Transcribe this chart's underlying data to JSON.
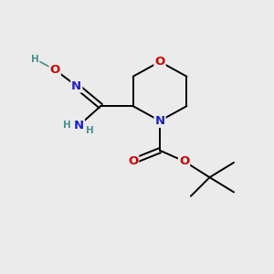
{
  "bg_color": "#ebebeb",
  "atom_colors": {
    "C": "#000000",
    "N": "#2020cc",
    "O": "#cc0000",
    "H": "#4a9090"
  },
  "figsize": [
    3.0,
    3.0
  ],
  "dpi": 100
}
